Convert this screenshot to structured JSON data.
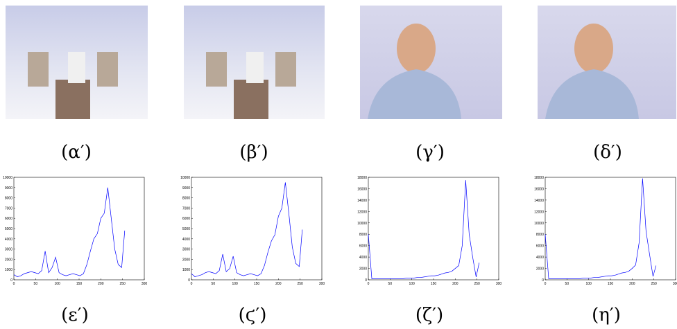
{
  "panels": [
    {
      "caption": "(α′)"
    },
    {
      "caption": "(β′)"
    },
    {
      "caption": "(γ′)"
    },
    {
      "caption": "(δ′)"
    }
  ],
  "chart_data": [
    {
      "type": "line",
      "caption": "(ε′)",
      "x": [
        0,
        8,
        16,
        24,
        32,
        40,
        48,
        56,
        64,
        72,
        80,
        88,
        96,
        104,
        112,
        120,
        128,
        136,
        144,
        152,
        160,
        168,
        176,
        184,
        192,
        200,
        208,
        216,
        224,
        232,
        240,
        248,
        255
      ],
      "series": [
        {
          "color": "#0000ff",
          "values": [
            500,
            300,
            400,
            600,
            700,
            800,
            700,
            600,
            900,
            2800,
            700,
            1200,
            2200,
            700,
            500,
            400,
            500,
            600,
            500,
            400,
            600,
            1500,
            2800,
            4000,
            4500,
            6000,
            6500,
            9000,
            6000,
            3000,
            1500,
            1200,
            4800
          ]
        }
      ],
      "xlim": [
        0,
        300
      ],
      "xticks": [
        0,
        50,
        100,
        150,
        200,
        250,
        300
      ],
      "ylim": [
        0,
        10000
      ],
      "yticks": [
        0,
        1000,
        2000,
        3000,
        4000,
        5000,
        6000,
        7000,
        8000,
        9000,
        10000
      ]
    },
    {
      "type": "line",
      "caption": "(ϛ′)",
      "x": [
        0,
        8,
        16,
        24,
        32,
        40,
        48,
        56,
        64,
        72,
        80,
        88,
        96,
        104,
        112,
        120,
        128,
        136,
        144,
        152,
        160,
        168,
        176,
        184,
        192,
        200,
        208,
        216,
        224,
        232,
        240,
        248,
        255
      ],
      "series": [
        {
          "color": "#0000ff",
          "values": [
            600,
            300,
            400,
            500,
            700,
            800,
            700,
            600,
            900,
            2500,
            800,
            1100,
            2300,
            700,
            500,
            400,
            500,
            600,
            500,
            400,
            600,
            1400,
            2700,
            3800,
            4400,
            6200,
            7000,
            9500,
            6500,
            3200,
            1600,
            1300,
            4900
          ]
        }
      ],
      "xlim": [
        0,
        300
      ],
      "xticks": [
        0,
        50,
        100,
        150,
        200,
        250,
        300
      ],
      "ylim": [
        0,
        10000
      ],
      "yticks": [
        0,
        1000,
        2000,
        3000,
        4000,
        5000,
        6000,
        7000,
        8000,
        9000,
        10000
      ]
    },
    {
      "type": "line",
      "caption": "(ζ′)",
      "x": [
        0,
        8,
        16,
        24,
        32,
        40,
        48,
        56,
        64,
        72,
        80,
        88,
        96,
        104,
        112,
        120,
        128,
        136,
        144,
        152,
        160,
        168,
        176,
        184,
        192,
        200,
        208,
        216,
        224,
        232,
        240,
        248,
        255
      ],
      "series": [
        {
          "color": "#0000ff",
          "values": [
            8000,
            200,
            200,
            200,
            200,
            200,
            200,
            200,
            200,
            200,
            200,
            300,
            300,
            300,
            400,
            400,
            500,
            600,
            700,
            700,
            800,
            1000,
            1200,
            1300,
            1500,
            2000,
            2500,
            6000,
            17500,
            8000,
            4000,
            500,
            3000
          ]
        }
      ],
      "xlim": [
        0,
        300
      ],
      "xticks": [
        0,
        50,
        100,
        150,
        200,
        250,
        300
      ],
      "ylim": [
        0,
        18000
      ],
      "yticks": [
        0,
        2000,
        4000,
        6000,
        8000,
        10000,
        12000,
        14000,
        16000,
        18000
      ]
    },
    {
      "type": "line",
      "caption": "(η′)",
      "x": [
        0,
        8,
        16,
        24,
        32,
        40,
        48,
        56,
        64,
        72,
        80,
        88,
        96,
        104,
        112,
        120,
        128,
        136,
        144,
        152,
        160,
        168,
        176,
        184,
        192,
        200,
        208,
        216,
        224,
        232,
        240,
        248,
        255
      ],
      "series": [
        {
          "color": "#0000ff",
          "values": [
            8000,
            200,
            200,
            200,
            200,
            200,
            200,
            200,
            200,
            200,
            200,
            300,
            300,
            300,
            400,
            400,
            500,
            600,
            700,
            700,
            800,
            1000,
            1200,
            1300,
            1500,
            2000,
            2600,
            6500,
            17800,
            8500,
            4500,
            600,
            2500
          ]
        }
      ],
      "xlim": [
        0,
        300
      ],
      "xticks": [
        0,
        50,
        100,
        150,
        200,
        250,
        300
      ],
      "ylim": [
        0,
        18000
      ],
      "yticks": [
        0,
        2000,
        4000,
        6000,
        8000,
        10000,
        12000,
        14000,
        16000,
        18000
      ]
    }
  ]
}
